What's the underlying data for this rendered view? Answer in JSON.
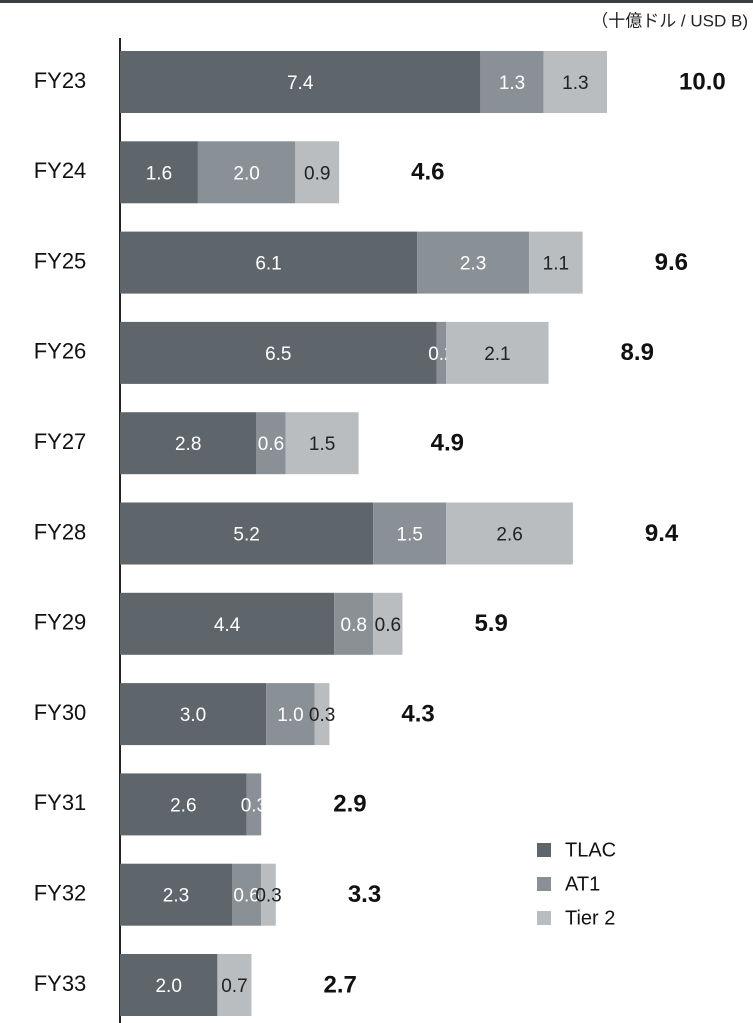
{
  "chart_data": {
    "type": "bar",
    "orientation": "horizontal",
    "stacked": true,
    "unit_label": "（十億ドル / USD B)",
    "categories": [
      "FY23",
      "FY24",
      "FY25",
      "FY26",
      "FY27",
      "FY28",
      "FY29",
      "FY30",
      "FY31",
      "FY32",
      "FY33"
    ],
    "series": [
      {
        "name": "TLAC",
        "color": "#5f666b",
        "values": [
          7.4,
          1.6,
          6.1,
          6.5,
          2.8,
          5.2,
          4.4,
          3.0,
          2.6,
          2.3,
          2.0
        ],
        "value_labels": [
          "7.4",
          "1.6",
          "6.1",
          "6.5",
          "2.8",
          "5.2",
          "4.4",
          "3.0",
          "2.6",
          "2.3",
          "2.0"
        ]
      },
      {
        "name": "AT1",
        "color": "#8a9196",
        "values": [
          1.3,
          2.0,
          2.3,
          0.2,
          0.6,
          1.5,
          0.8,
          1.0,
          0.3,
          0.6,
          null
        ],
        "value_labels": [
          "1.3",
          "2.0",
          "2.3",
          "0.2",
          "0.6",
          "1.5",
          "0.8",
          "1.0",
          "0.3",
          "0.6",
          null
        ]
      },
      {
        "name": "Tier 2",
        "color": "#b9bdc0",
        "values": [
          1.3,
          0.9,
          1.1,
          2.1,
          1.5,
          2.6,
          0.6,
          0.3,
          null,
          0.3,
          0.7
        ],
        "value_labels": [
          "1.3",
          "0.9",
          "1.1",
          "2.1",
          "1.5",
          "2.6",
          "0.6",
          "0.3",
          null,
          "0.3",
          "0.7"
        ]
      }
    ],
    "totals": [
      10.0,
      4.6,
      9.6,
      8.9,
      4.9,
      9.4,
      5.9,
      4.3,
      2.9,
      3.3,
      2.7
    ],
    "total_labels": [
      "10.0",
      "4.6",
      "9.6",
      "8.9",
      "4.9",
      "9.4",
      "5.9",
      "4.3",
      "2.9",
      "3.3",
      "2.7"
    ],
    "legend": "bottom-right"
  }
}
